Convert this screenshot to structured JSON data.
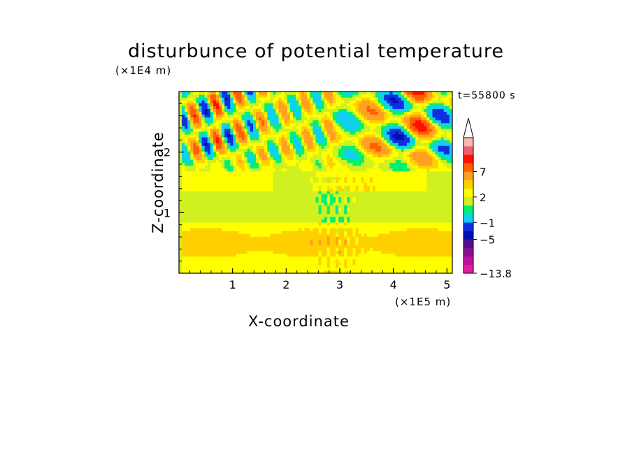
{
  "chart_data": {
    "type": "heatmap",
    "title": "disturbunce of potential temperature",
    "xlabel": "X-coordinate",
    "ylabel": "Z-coordinate",
    "x_unit": "(×1E5 m)",
    "z_unit": "(×1E4 m)",
    "time_label": "t=55800 s",
    "xlim": [
      0,
      5.1
    ],
    "ylim": [
      0,
      3.0
    ],
    "x_ticks": [
      "1",
      "2",
      "3",
      "4",
      "5"
    ],
    "x_tick_values": [
      1,
      2,
      3,
      4,
      5
    ],
    "y_ticks": [
      "1",
      "2"
    ],
    "y_tick_values": [
      1,
      2
    ],
    "colorbar": {
      "levels": [
        "-13.8",
        "-11",
        "-9",
        "-7",
        "-5",
        "-3",
        "-1",
        "0",
        "1",
        "2",
        "3",
        "5",
        "7",
        "9",
        "11"
      ],
      "labels": [
        "7",
        "2",
        "-1",
        "-5",
        "-13.8"
      ],
      "colors": [
        "#e020a0",
        "#c010a0",
        "#8a1090",
        "#501090",
        "#0010b0",
        "#1030e0",
        "#10d0f0",
        "#00f070",
        "#d0f020",
        "#ffff00",
        "#ffd000",
        "#ffa020",
        "#ff6000",
        "#ff1000",
        "#f06070",
        "#f8b8b0"
      ]
    }
  }
}
